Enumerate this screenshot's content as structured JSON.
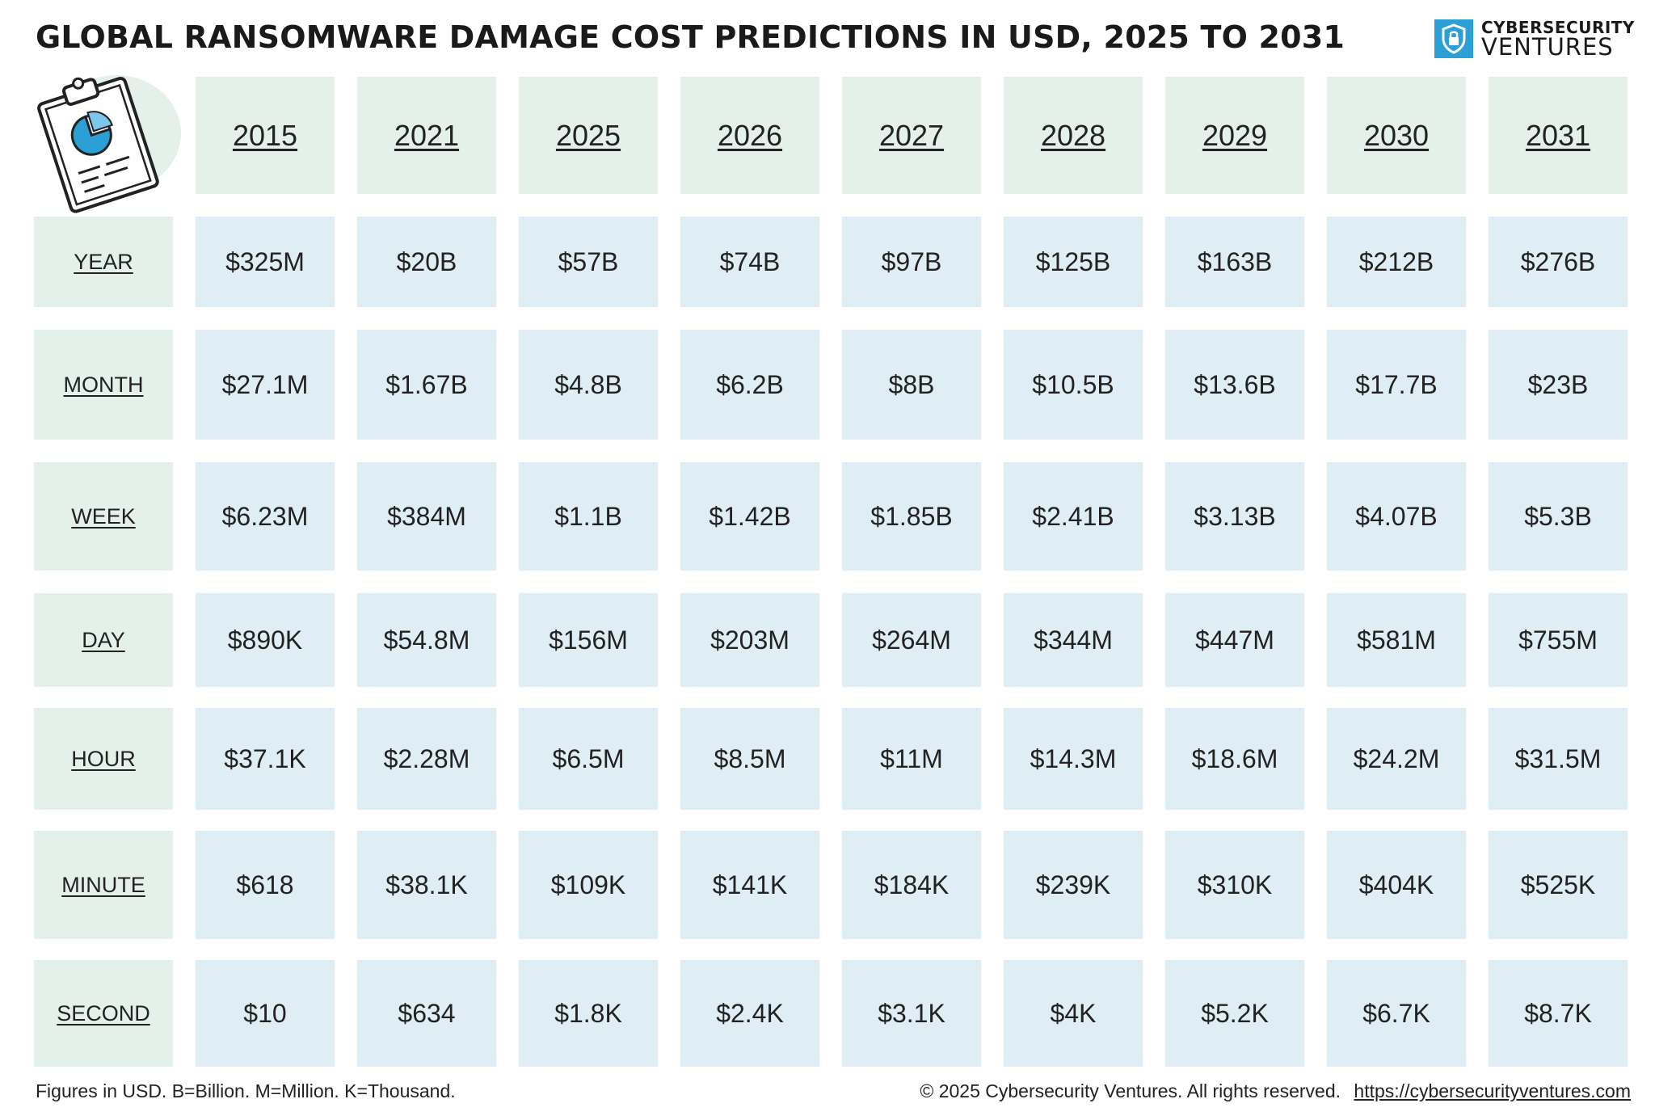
{
  "title": "GLOBAL RANSOMWARE DAMAGE COST PREDICTIONS IN USD, 2025 TO 2031",
  "logo": {
    "top": "CYBERSECURITY",
    "bottom": "VENTURES"
  },
  "chart_data": {
    "type": "table",
    "title": "GLOBAL RANSOMWARE DAMAGE COST PREDICTIONS IN USD, 2025 TO 2031",
    "columns": [
      "2015",
      "2021",
      "2025",
      "2026",
      "2027",
      "2028",
      "2029",
      "2030",
      "2031"
    ],
    "rows": [
      {
        "label": "YEAR",
        "values": [
          "$325M",
          "$20B",
          "$57B",
          "$74B",
          "$97B",
          "$125B",
          "$163B",
          "$212B",
          "$276B"
        ]
      },
      {
        "label": "MONTH",
        "values": [
          "$27.1M",
          "$1.67B",
          "$4.8B",
          "$6.2B",
          "$8B",
          "$10.5B",
          "$13.6B",
          "$17.7B",
          "$23B"
        ]
      },
      {
        "label": "WEEK",
        "values": [
          "$6.23M",
          "$384M",
          "$1.1B",
          "$1.42B",
          "$1.85B",
          "$2.41B",
          "$3.13B",
          "$4.07B",
          "$5.3B"
        ]
      },
      {
        "label": "DAY",
        "values": [
          "$890K",
          "$54.8M",
          "$156M",
          "$203M",
          "$264M",
          "$344M",
          "$447M",
          "$581M",
          "$755M"
        ]
      },
      {
        "label": "HOUR",
        "values": [
          "$37.1K",
          "$2.28M",
          "$6.5M",
          "$8.5M",
          "$11M",
          "$14.3M",
          "$18.6M",
          "$24.2M",
          "$31.5M"
        ]
      },
      {
        "label": "MINUTE",
        "values": [
          "$618",
          "$38.1K",
          "$109K",
          "$141K",
          "$184K",
          "$239K",
          "$310K",
          "$404K",
          "$525K"
        ]
      },
      {
        "label": "SECOND",
        "values": [
          "$10",
          "$634",
          "$1.8K",
          "$2.4K",
          "$3.1K",
          "$4K",
          "$5.2K",
          "$6.7K",
          "$8.7K"
        ]
      }
    ]
  },
  "footer": {
    "note": "Figures in USD. B=Billion. M=Million. K=Thousand.",
    "copyright": "© 2025 Cybersecurity Ventures. All rights reserved.",
    "link": "https://cybersecurityventures.com"
  },
  "colors": {
    "header_bg": "#e3f1ea",
    "cell_bg": "#dfedf5",
    "accent": "#2b9fd6"
  },
  "icons": {
    "logo": "shield-lock-icon",
    "illustration": "clipboard-pie-chart-icon"
  }
}
